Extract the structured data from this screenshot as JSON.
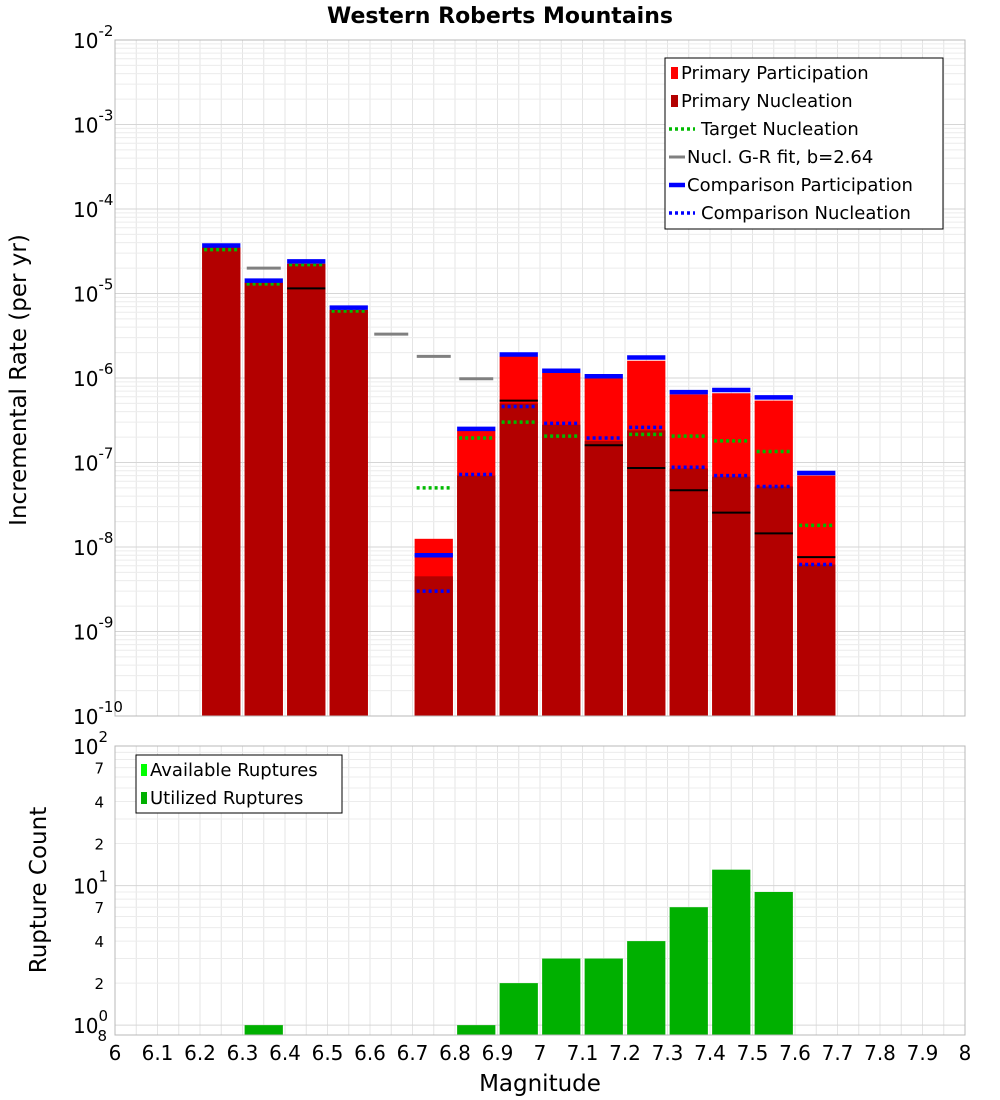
{
  "chart_data": [
    {
      "type": "bar",
      "title": "Western Roberts Mountains",
      "xlabel": "",
      "ylabel": "Incremental Rate (per yr)",
      "yscale": "log",
      "xlim": [
        6,
        8
      ],
      "ylim": [
        1e-10,
        0.01
      ],
      "grid": true,
      "legend_position": "top-right",
      "ytick_labels": [
        {
          "base": "10",
          "exp": "-10"
        },
        {
          "base": "10",
          "exp": "-9"
        },
        {
          "base": "10",
          "exp": "-8"
        },
        {
          "base": "10",
          "exp": "-7"
        },
        {
          "base": "10",
          "exp": "-6"
        },
        {
          "base": "10",
          "exp": "-5"
        },
        {
          "base": "10",
          "exp": "-4"
        },
        {
          "base": "10",
          "exp": "-3"
        },
        {
          "base": "10",
          "exp": "-2"
        }
      ],
      "colors": {
        "primary_participation": "#ff0000",
        "primary_nucleation": "#b30000",
        "target_nucleation": "#00bb00",
        "gr_fit": "#808080",
        "comparison_participation": "#0000ff",
        "comparison_nucleation": "#0000ff",
        "nucleation_marker": "#000000"
      },
      "legend": [
        {
          "label": "Primary Participation",
          "style": "bar",
          "color": "#ff0000"
        },
        {
          "label": "Primary Nucleation",
          "style": "bar",
          "color": "#b30000"
        },
        {
          "label": "Target Nucleation",
          "style": "dotted",
          "color": "#00bb00"
        },
        {
          "label": "Nucl. G-R fit, b=2.64",
          "style": "solid",
          "color": "#808080"
        },
        {
          "label": "Comparison Participation",
          "style": "thick",
          "color": "#0000ff"
        },
        {
          "label": "Comparison Nucleation",
          "style": "dotted",
          "color": "#0000ff"
        }
      ],
      "bins": [
        {
          "x": 6.25,
          "participation": 3.5e-05,
          "nucleation": 3.5e-05,
          "target_nucleation": 3.3e-05,
          "comparison_participation": 3.7e-05,
          "comparison_nucleation": null,
          "nucleation_marker": null
        },
        {
          "x": 6.35,
          "participation": 1.35e-05,
          "nucleation": 1.35e-05,
          "target_nucleation": 1.3e-05,
          "comparison_participation": 1.42e-05,
          "comparison_nucleation": null,
          "nucleation_marker": null
        },
        {
          "x": 6.45,
          "participation": 2.25e-05,
          "nucleation": 2.25e-05,
          "target_nucleation": 2.2e-05,
          "comparison_participation": 2.4e-05,
          "comparison_nucleation": null,
          "nucleation_marker": 1.15e-05
        },
        {
          "x": 6.55,
          "participation": 6.4e-06,
          "nucleation": 6.4e-06,
          "target_nucleation": 6.2e-06,
          "comparison_participation": 6.8e-06,
          "comparison_nucleation": null,
          "nucleation_marker": null
        },
        {
          "x": 6.75,
          "participation": 1.25e-08,
          "nucleation": 4.5e-09,
          "target_nucleation": 5e-08,
          "comparison_participation": 8e-09,
          "comparison_nucleation": 3e-09,
          "nucleation_marker": null
        },
        {
          "x": 6.85,
          "participation": 2.4e-07,
          "nucleation": 7e-08,
          "target_nucleation": 1.95e-07,
          "comparison_participation": 2.5e-07,
          "comparison_nucleation": 7.2e-08,
          "nucleation_marker": null
        },
        {
          "x": 6.95,
          "participation": 1.8e-06,
          "nucleation": 5e-07,
          "target_nucleation": 3e-07,
          "comparison_participation": 1.9e-06,
          "comparison_nucleation": 4.6e-07,
          "nucleation_marker": 5.4e-07
        },
        {
          "x": 7.05,
          "participation": 1.15e-06,
          "nucleation": 2.8e-07,
          "target_nucleation": 2.05e-07,
          "comparison_participation": 1.22e-06,
          "comparison_nucleation": 2.9e-07,
          "nucleation_marker": null
        },
        {
          "x": 7.15,
          "participation": 1e-06,
          "nucleation": 1.8e-07,
          "target_nucleation": null,
          "comparison_participation": 1.05e-06,
          "comparison_nucleation": 1.95e-07,
          "nucleation_marker": 1.6e-07
        },
        {
          "x": 7.25,
          "participation": 1.6e-06,
          "nucleation": 2.4e-07,
          "target_nucleation": 2.15e-07,
          "comparison_participation": 1.75e-06,
          "comparison_nucleation": 2.6e-07,
          "nucleation_marker": 8.6e-08
        },
        {
          "x": 7.35,
          "participation": 6.4e-07,
          "nucleation": 8.5e-08,
          "target_nucleation": 2.05e-07,
          "comparison_participation": 6.8e-07,
          "comparison_nucleation": 8.8e-08,
          "nucleation_marker": 4.7e-08
        },
        {
          "x": 7.45,
          "participation": 6.6e-07,
          "nucleation": 6.8e-08,
          "target_nucleation": 1.8e-07,
          "comparison_participation": 7.2e-07,
          "comparison_nucleation": 7e-08,
          "nucleation_marker": 2.55e-08
        },
        {
          "x": 7.55,
          "participation": 5.4e-07,
          "nucleation": 5.2e-08,
          "target_nucleation": 1.35e-07,
          "comparison_participation": 5.9e-07,
          "comparison_nucleation": 5.2e-08,
          "nucleation_marker": 1.45e-08
        },
        {
          "x": 7.65,
          "participation": 7e-08,
          "nucleation": 6.2e-09,
          "target_nucleation": 1.8e-08,
          "comparison_participation": 7.5e-08,
          "comparison_nucleation": 6.2e-09,
          "nucleation_marker": 7.6e-09
        }
      ],
      "gr_fit_segments": [
        {
          "x": 6.35,
          "y": 2e-05
        },
        {
          "x": 6.65,
          "y": 3.3e-06
        },
        {
          "x": 6.75,
          "y": 1.8e-06
        },
        {
          "x": 6.85,
          "y": 9.8e-07
        }
      ]
    },
    {
      "type": "bar",
      "title": "",
      "xlabel": "Magnitude",
      "ylabel": "Rupture Count",
      "yscale": "log",
      "xlim": [
        6,
        8
      ],
      "ylim": [
        0.85,
        100
      ],
      "grid": true,
      "legend_position": "top-left",
      "xtick_labels": [
        "6",
        "6.1",
        "6.2",
        "6.3",
        "6.4",
        "6.5",
        "6.6",
        "6.7",
        "6.8",
        "6.9",
        "7",
        "7.1",
        "7.2",
        "7.3",
        "7.4",
        "7.5",
        "7.6",
        "7.7",
        "7.8",
        "7.9",
        "8"
      ],
      "ytick_labels": [
        {
          "base": "10",
          "exp": "2"
        },
        {
          "base": "10",
          "exp": "1"
        },
        {
          "base": "10",
          "exp": "0"
        }
      ],
      "minor_tick_labels": [
        {
          "value": 70,
          "label": "7"
        },
        {
          "value": 40,
          "label": "4"
        },
        {
          "value": 20,
          "label": "2"
        },
        {
          "value": 7,
          "label": "7"
        },
        {
          "value": 4,
          "label": "4"
        },
        {
          "value": 2,
          "label": "2"
        },
        {
          "value": 0.85,
          "label": "8"
        }
      ],
      "colors": {
        "available": "#00ff00",
        "utilized": "#00b000"
      },
      "legend": [
        {
          "label": "Available Ruptures",
          "color": "#00ff00"
        },
        {
          "label": "Utilized Ruptures",
          "color": "#00b000"
        }
      ],
      "series": [
        {
          "name": "Utilized Ruptures",
          "x": [
            6.35,
            6.85,
            6.95,
            7.05,
            7.15,
            7.25,
            7.35,
            7.45,
            7.55
          ],
          "values": [
            1,
            1,
            2,
            3,
            3,
            4,
            7,
            13,
            9
          ]
        }
      ]
    }
  ]
}
